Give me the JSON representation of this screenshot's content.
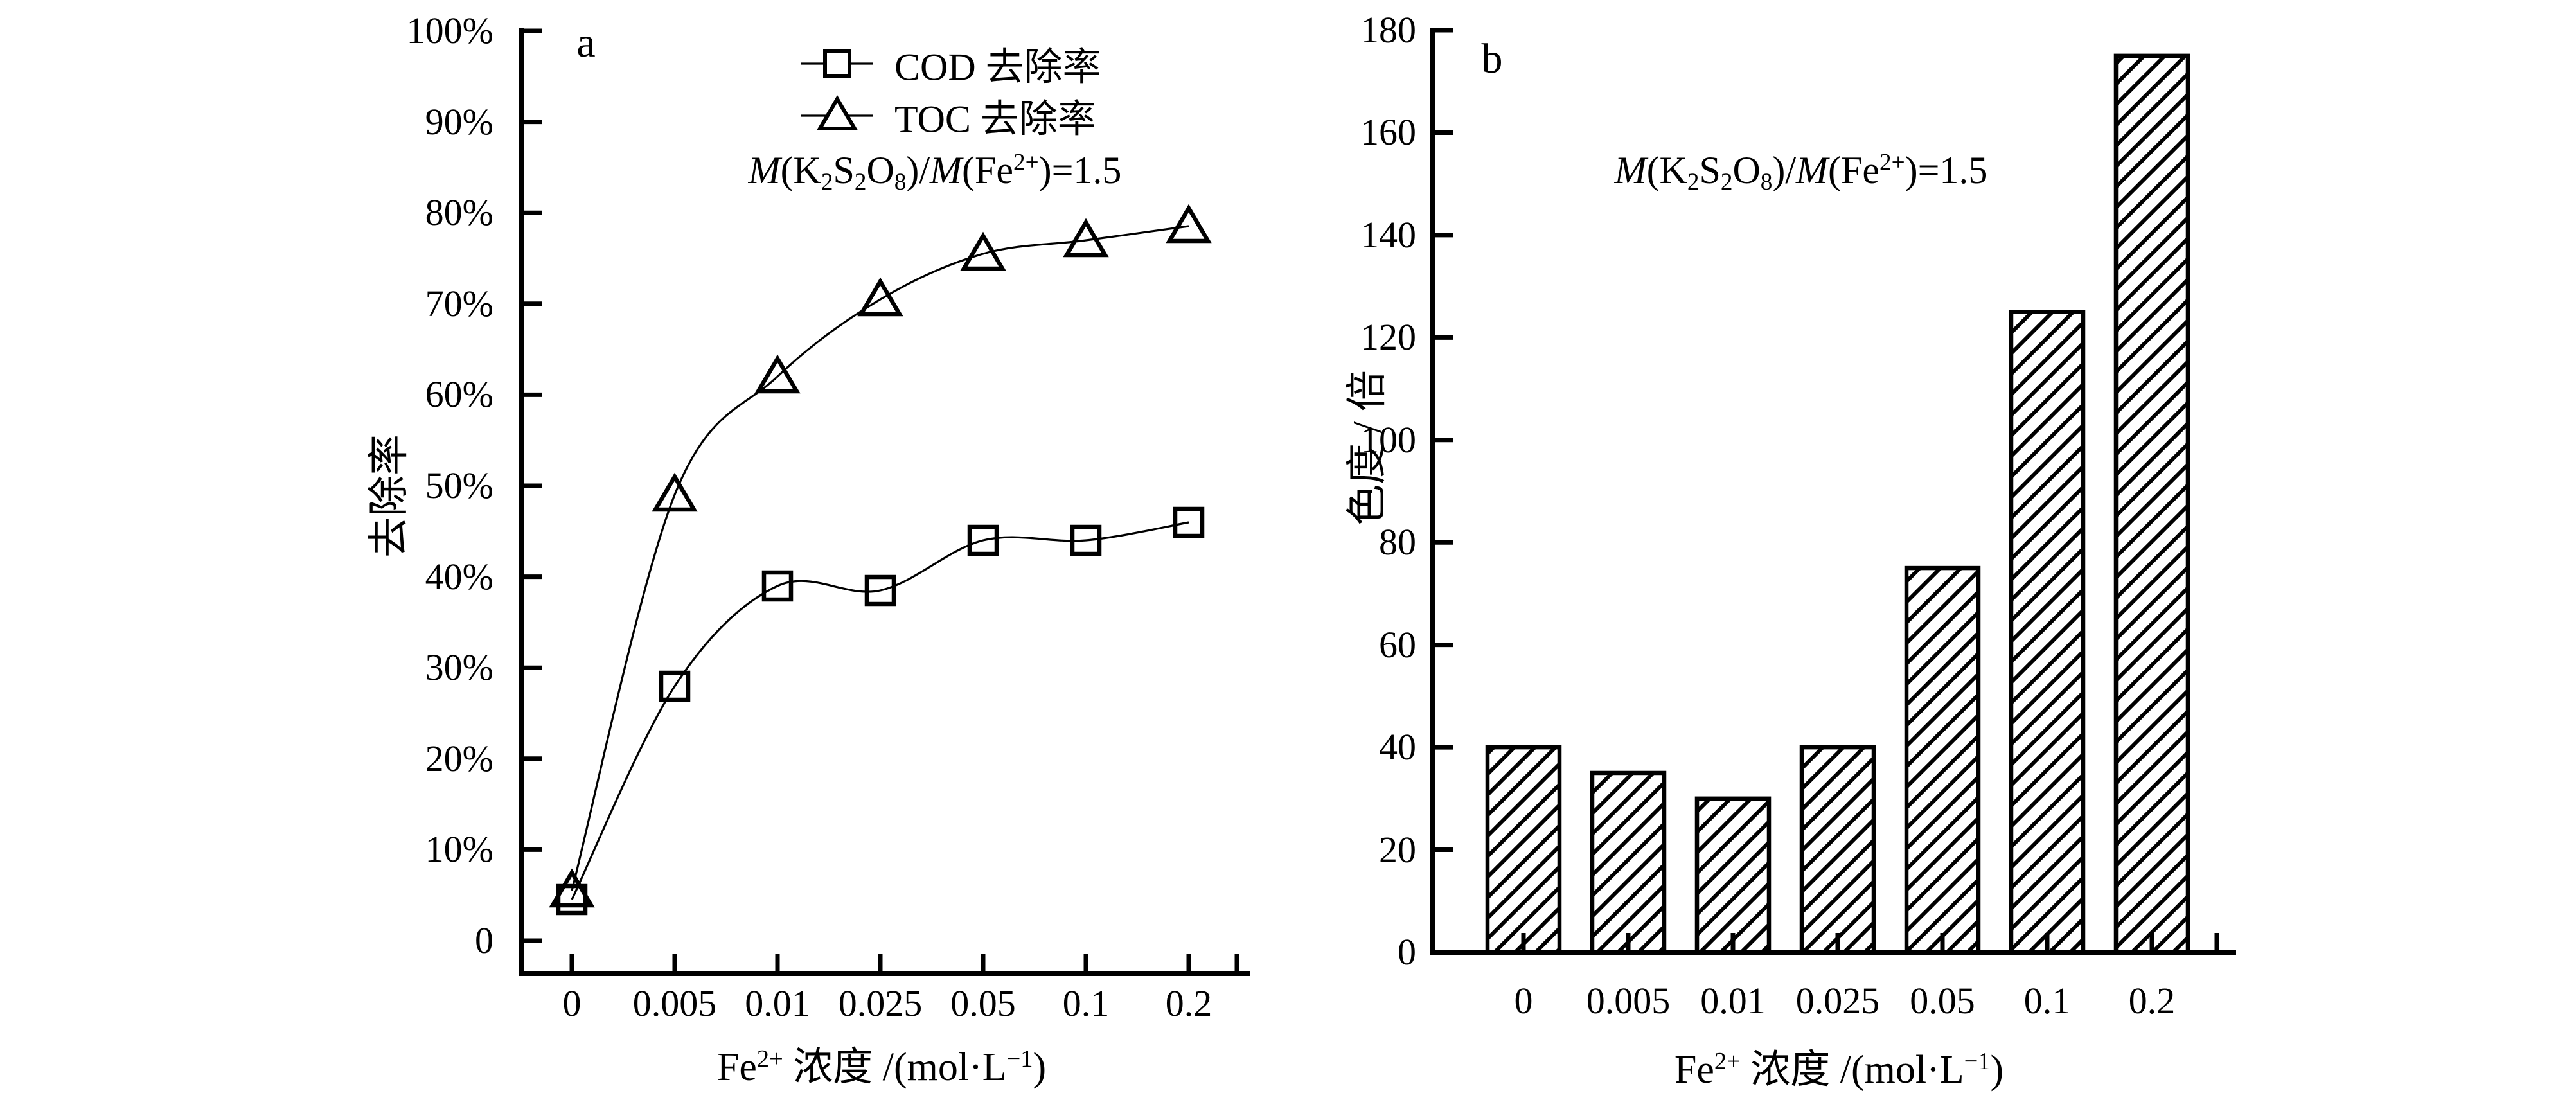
{
  "colors": {
    "ink": "#000000",
    "background": "#ffffff"
  },
  "chart_data": [
    {
      "id": "a",
      "type": "line",
      "panel_label": "a",
      "y_axis_title": "去除率",
      "x_axis_title_text": "Fe2+ 浓度 /(mol·L−1)",
      "x_axis_title_parts": [
        {
          "t": "Fe"
        },
        {
          "t": "2+",
          "s": "sup"
        },
        {
          "t": " 浓度 /(mol·L"
        },
        {
          "t": "−1",
          "s": "sup"
        },
        {
          "t": ")"
        }
      ],
      "annotation_text": "M(K2S2O8)/M(Fe2+)=1.5",
      "annotation_parts": [
        {
          "t": "M",
          "s": "i"
        },
        {
          "t": "(K"
        },
        {
          "t": "2",
          "s": "sub"
        },
        {
          "t": "S"
        },
        {
          "t": "2",
          "s": "sub"
        },
        {
          "t": "O"
        },
        {
          "t": "8",
          "s": "sub"
        },
        {
          "t": ")/"
        },
        {
          "t": "M",
          "s": "i"
        },
        {
          "t": "(Fe"
        },
        {
          "t": "2+",
          "s": "sup"
        },
        {
          "t": ")=1.5"
        }
      ],
      "categories": [
        "0",
        "0.005",
        "0.01",
        "0.025",
        "0.05",
        "0.1",
        "0.2"
      ],
      "y_ticks": [
        "100%",
        "90%",
        "80%",
        "70%",
        "60%",
        "50%",
        "40%",
        "30%",
        "20%",
        "10%",
        "0"
      ],
      "y_range": [
        0,
        100
      ],
      "grid": "off",
      "legend_position": "top-center-inside",
      "legend": [
        {
          "marker": "square",
          "label": "COD 去除率"
        },
        {
          "marker": "triangle",
          "label": "TOC 去除率"
        }
      ],
      "series": [
        {
          "name": "COD 去除率",
          "marker": "square",
          "values": [
            4.5,
            28,
            39,
            38.5,
            44,
            44,
            46
          ]
        },
        {
          "name": "TOC 去除率",
          "marker": "triangle",
          "values": [
            5.5,
            49,
            62,
            70.5,
            75.5,
            77,
            78.5
          ]
        }
      ]
    },
    {
      "id": "b",
      "type": "bar",
      "panel_label": "b",
      "y_axis_title": "色度 / 倍",
      "x_axis_title_text": "Fe2+ 浓度 /(mol·L−1)",
      "x_axis_title_parts": [
        {
          "t": "Fe"
        },
        {
          "t": "2+",
          "s": "sup"
        },
        {
          "t": " 浓度 /(mol·L"
        },
        {
          "t": "−1",
          "s": "sup"
        },
        {
          "t": ")"
        }
      ],
      "annotation_text": "M(K2S2O8)/M(Fe2+)=1.5",
      "annotation_parts": [
        {
          "t": "M",
          "s": "i"
        },
        {
          "t": "(K"
        },
        {
          "t": "2",
          "s": "sub"
        },
        {
          "t": "S"
        },
        {
          "t": "2",
          "s": "sub"
        },
        {
          "t": "O"
        },
        {
          "t": "8",
          "s": "sub"
        },
        {
          "t": ")/"
        },
        {
          "t": "M",
          "s": "i"
        },
        {
          "t": "(Fe"
        },
        {
          "t": "2+",
          "s": "sup"
        },
        {
          "t": ")=1.5"
        }
      ],
      "categories": [
        "0",
        "0.005",
        "0.01",
        "0.025",
        "0.05",
        "0.1",
        "0.2"
      ],
      "y_ticks": [
        "180",
        "160",
        "140",
        "120",
        "100",
        "80",
        "60",
        "40",
        "20",
        "0"
      ],
      "y_range": [
        0,
        180
      ],
      "grid": "off",
      "bar_hatch": "diagonal",
      "values": [
        40,
        35,
        30,
        40,
        75,
        125,
        175
      ]
    }
  ]
}
